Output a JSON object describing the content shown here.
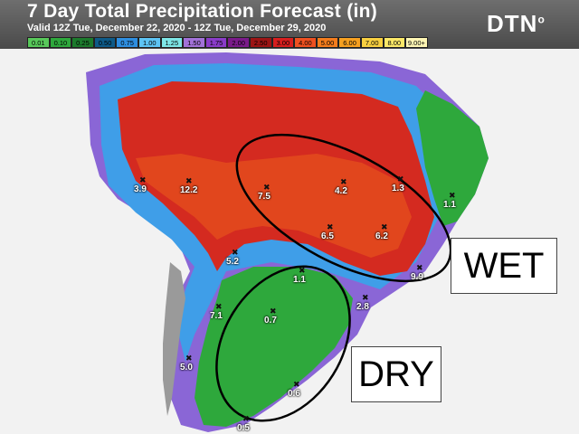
{
  "header": {
    "title": "7 Day Total Precipitation Forecast (in)",
    "valid": "Valid 12Z Tue, December 22, 2020 - 12Z Tue, December 29, 2020",
    "logo": "DTN"
  },
  "legend": [
    {
      "label": "0.01",
      "color": "#58c85a"
    },
    {
      "label": "0.10",
      "color": "#2ea83c"
    },
    {
      "label": "0.25",
      "color": "#1c7a2c"
    },
    {
      "label": "0.50",
      "color": "#0e5a88"
    },
    {
      "label": "0.75",
      "color": "#2e8ee0"
    },
    {
      "label": "1.00",
      "color": "#5ec4f4"
    },
    {
      "label": "1.25",
      "color": "#7ee6e6"
    },
    {
      "label": "1.50",
      "color": "#a272d8"
    },
    {
      "label": "1.75",
      "color": "#8a3cc8"
    },
    {
      "label": "2.00",
      "color": "#7a1a8a"
    },
    {
      "label": "2.50",
      "color": "#9c1414"
    },
    {
      "label": "3.00",
      "color": "#d81e1e"
    },
    {
      "label": "4.00",
      "color": "#ee5020"
    },
    {
      "label": "5.00",
      "color": "#f47c1c"
    },
    {
      "label": "6.00",
      "color": "#f6a020"
    },
    {
      "label": "7.00",
      "color": "#f8d040"
    },
    {
      "label": "8.00",
      "color": "#fce868"
    },
    {
      "label": "9.00+",
      "color": "#fff6b4"
    }
  ],
  "annotations": {
    "wet": "WET",
    "dry": "DRY"
  },
  "stations": [
    {
      "value": "3.9"
    },
    {
      "value": "12.2"
    },
    {
      "value": "7.5"
    },
    {
      "value": "4.2"
    },
    {
      "value": "1.3"
    },
    {
      "value": "1.1"
    },
    {
      "value": "6.5"
    },
    {
      "value": "6.2"
    },
    {
      "value": "5.2"
    },
    {
      "value": "9.9"
    },
    {
      "value": "1.1"
    },
    {
      "value": "2.8"
    },
    {
      "value": "7.1"
    },
    {
      "value": "0.7"
    },
    {
      "value": "5.0"
    },
    {
      "value": "0.6"
    },
    {
      "value": "0.5"
    }
  ]
}
